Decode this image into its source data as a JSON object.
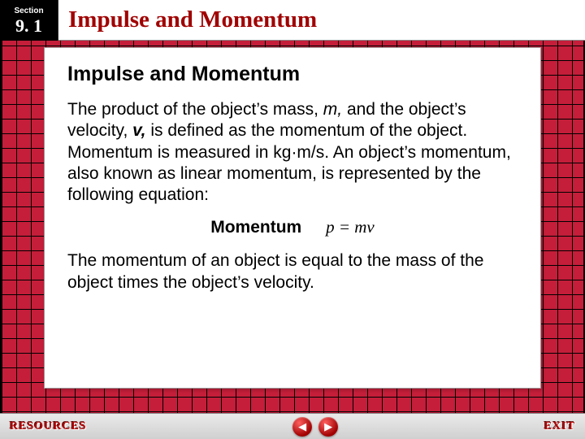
{
  "colors": {
    "grid_bg": "#c41e3a",
    "grid_line": "#000000",
    "title_color": "#a00000",
    "panel_bg": "#ffffff",
    "section_bg": "#000000",
    "footer_text": "#b00000"
  },
  "header": {
    "section_label": "Section",
    "section_number": "9. 1",
    "chapter_title": "Impulse and Momentum"
  },
  "content": {
    "subheading": "Impulse and Momentum",
    "paragraph1_pre": "The product of the object’s mass, ",
    "paragraph1_m": "m,",
    "paragraph1_mid": " and the object’s velocity, ",
    "paragraph1_v": "v,",
    "paragraph1_post": " is defined as the momentum of the object. Momentum is measured in kg·m/s. An object’s momentum, also known as linear momentum, is represented by the following equation:",
    "equation_label": "Momentum",
    "equation_formula": "p = mv",
    "paragraph2": "The momentum of an object is equal to the mass of the object times the object’s velocity."
  },
  "footer": {
    "resources_label": "RESOURCES",
    "exit_label": "EXIT",
    "prev_glyph": "◀",
    "next_glyph": "▶"
  }
}
